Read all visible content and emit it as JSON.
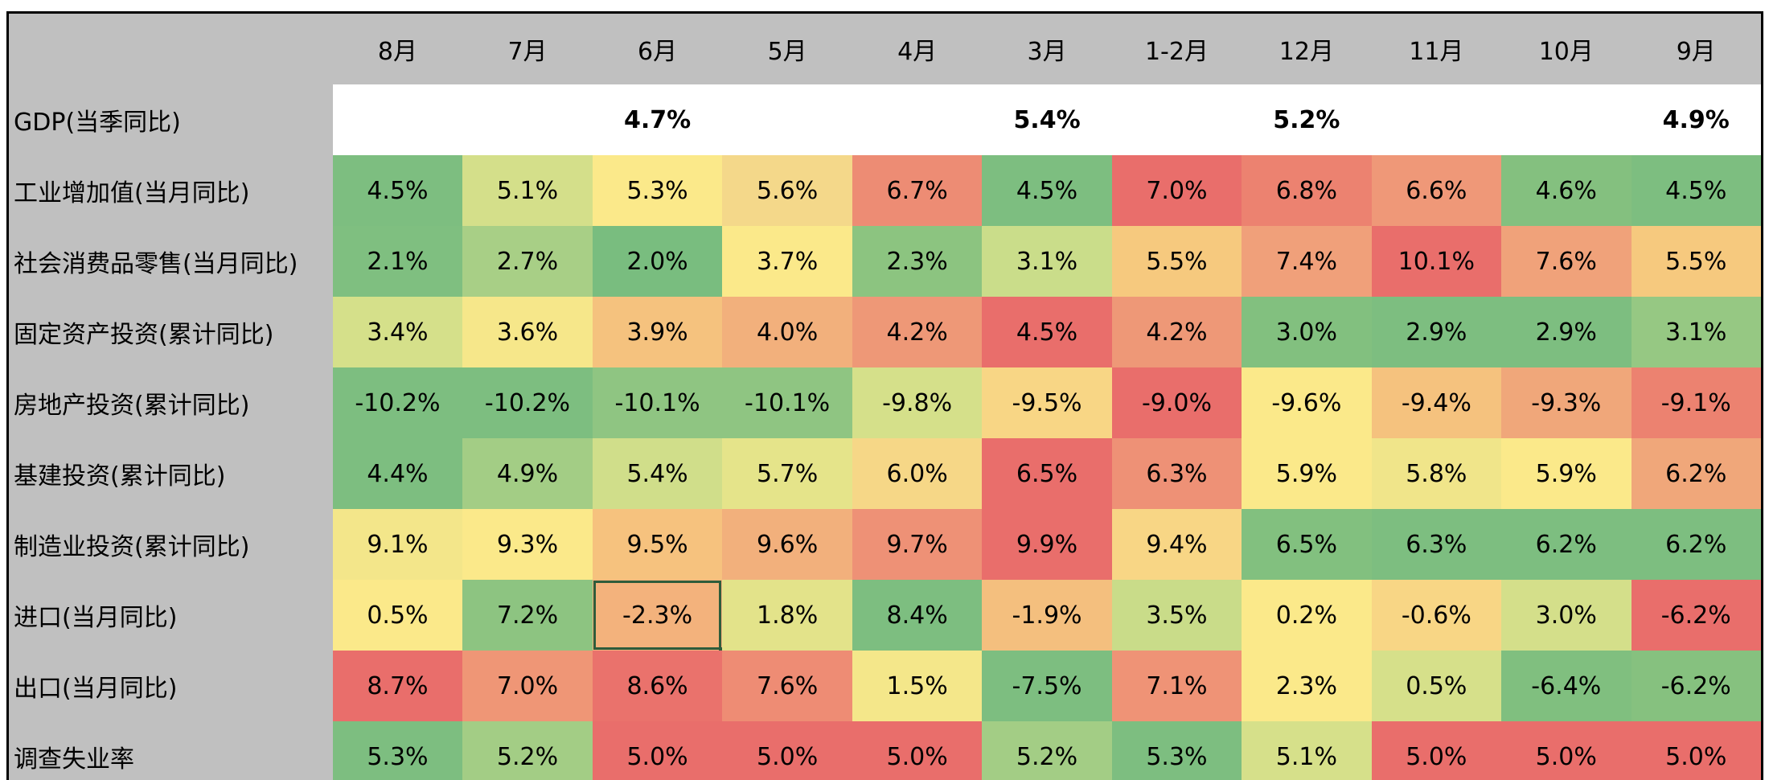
{
  "chart_data": {
    "type": "table",
    "columns": [
      "8月",
      "7月",
      "6月",
      "5月",
      "4月",
      "3月",
      "1-2月",
      "12月",
      "11月",
      "10月",
      "9月"
    ],
    "rows": [
      {
        "label": "GDP(当季同比)",
        "values": [
          "",
          "",
          "4.7%",
          "",
          "",
          "5.4%",
          "",
          "5.2%",
          "",
          "",
          "4.9%"
        ],
        "colors": [
          "#ffffff",
          "#ffffff",
          "#ffffff",
          "#ffffff",
          "#ffffff",
          "#ffffff",
          "#ffffff",
          "#ffffff",
          "#ffffff",
          "#ffffff",
          "#ffffff"
        ]
      },
      {
        "label": "工业增加值(当月同比)",
        "values": [
          "4.5%",
          "5.1%",
          "5.3%",
          "5.6%",
          "6.7%",
          "4.5%",
          "7.0%",
          "6.8%",
          "6.6%",
          "4.6%",
          "4.5%"
        ],
        "colors": [
          "#7dbe80",
          "#d4df8a",
          "#fbe98a",
          "#f4d88a",
          "#ed8c74",
          "#7dbe80",
          "#e96e6b",
          "#ec8270",
          "#ef9878",
          "#84c07f",
          "#7dbe80"
        ]
      },
      {
        "label": "社会消费品零售(当月同比)",
        "values": [
          "2.1%",
          "2.7%",
          "2.0%",
          "3.7%",
          "2.3%",
          "3.1%",
          "5.5%",
          "7.4%",
          "10.1%",
          "7.6%",
          "5.5%"
        ],
        "colors": [
          "#7fbf80",
          "#a8cf86",
          "#79bd7f",
          "#fbe98a",
          "#8cc480",
          "#cadd8a",
          "#f6c97e",
          "#f0a07a",
          "#e96e6b",
          "#f0a27a",
          "#f6c97e"
        ]
      },
      {
        "label": "固定资产投资(累计同比)",
        "values": [
          "3.4%",
          "3.6%",
          "3.9%",
          "4.0%",
          "4.2%",
          "4.5%",
          "4.2%",
          "3.0%",
          "2.9%",
          "2.9%",
          "3.1%"
        ],
        "colors": [
          "#d5e08a",
          "#f6e78a",
          "#f5c27e",
          "#f2b07c",
          "#ee9877",
          "#e96e6b",
          "#ee9877",
          "#82c07f",
          "#7dbe80",
          "#7dbe80",
          "#96c883"
        ]
      },
      {
        "label": "房地产投资(累计同比)",
        "values": [
          "-10.2%",
          "-10.2%",
          "-10.1%",
          "-10.1%",
          "-9.8%",
          "-9.5%",
          "-9.0%",
          "-9.6%",
          "-9.4%",
          "-9.3%",
          "-9.1%"
        ],
        "colors": [
          "#7dbe80",
          "#7dbe80",
          "#8fc582",
          "#8fc582",
          "#d5e08a",
          "#f8d685",
          "#e96e6b",
          "#fbe98a",
          "#f5c27e",
          "#f0a77a",
          "#ec8270"
        ]
      },
      {
        "label": "基建投资(累计同比)",
        "values": [
          "4.4%",
          "4.9%",
          "5.4%",
          "5.7%",
          "6.0%",
          "6.5%",
          "6.3%",
          "5.9%",
          "5.8%",
          "5.9%",
          "6.2%"
        ],
        "colors": [
          "#7dbe80",
          "#a3cd85",
          "#d0de8a",
          "#e5e48a",
          "#f6d787",
          "#e96e6b",
          "#ee9176",
          "#fbe98a",
          "#f0e58a",
          "#fbe98a",
          "#f0a77a"
        ]
      },
      {
        "label": "制造业投资(累计同比)",
        "values": [
          "9.1%",
          "9.3%",
          "9.5%",
          "9.6%",
          "9.7%",
          "9.9%",
          "9.4%",
          "6.5%",
          "6.3%",
          "6.2%",
          "6.2%"
        ],
        "colors": [
          "#f3e68a",
          "#fbe98a",
          "#f6c27e",
          "#f2b07c",
          "#ee9176",
          "#e96e6b",
          "#f8d685",
          "#82c07f",
          "#7dbe80",
          "#7dbe80",
          "#7dbe80"
        ]
      },
      {
        "label": "进口(当月同比)",
        "values": [
          "0.5%",
          "7.2%",
          "-2.3%",
          "1.8%",
          "8.4%",
          "-1.9%",
          "3.5%",
          "0.2%",
          "-0.6%",
          "3.0%",
          "-6.2%"
        ],
        "colors": [
          "#fbe98a",
          "#8dc481",
          "#f3b27c",
          "#e3e38a",
          "#7dbe80",
          "#f4bf7e",
          "#c9dc89",
          "#fbe98a",
          "#f8d685",
          "#d4df8a",
          "#e96e6b"
        ]
      },
      {
        "label": "出口(当月同比)",
        "values": [
          "8.7%",
          "7.0%",
          "8.6%",
          "7.6%",
          "1.5%",
          "-7.5%",
          "7.1%",
          "2.3%",
          "0.5%",
          "-6.4%",
          "-6.2%"
        ],
        "colors": [
          "#e96e6b",
          "#ef9676",
          "#ea726c",
          "#ee8c74",
          "#f4e78a",
          "#7dbe80",
          "#ef9376",
          "#fbe98a",
          "#d6e08a",
          "#80bf7f",
          "#86c17f"
        ]
      },
      {
        "label": "调查失业率",
        "values": [
          "5.3%",
          "5.2%",
          "5.0%",
          "5.0%",
          "5.0%",
          "5.2%",
          "5.3%",
          "5.1%",
          "5.0%",
          "5.0%",
          "5.0%"
        ],
        "colors": [
          "#7dbe80",
          "#a3cd85",
          "#e96e6b",
          "#e96e6b",
          "#e96e6b",
          "#a3cd85",
          "#7dbe80",
          "#d6e08a",
          "#e96e6b",
          "#e96e6b",
          "#e96e6b"
        ]
      }
    ],
    "selected_cell": {
      "row": 7,
      "col": 2
    }
  }
}
